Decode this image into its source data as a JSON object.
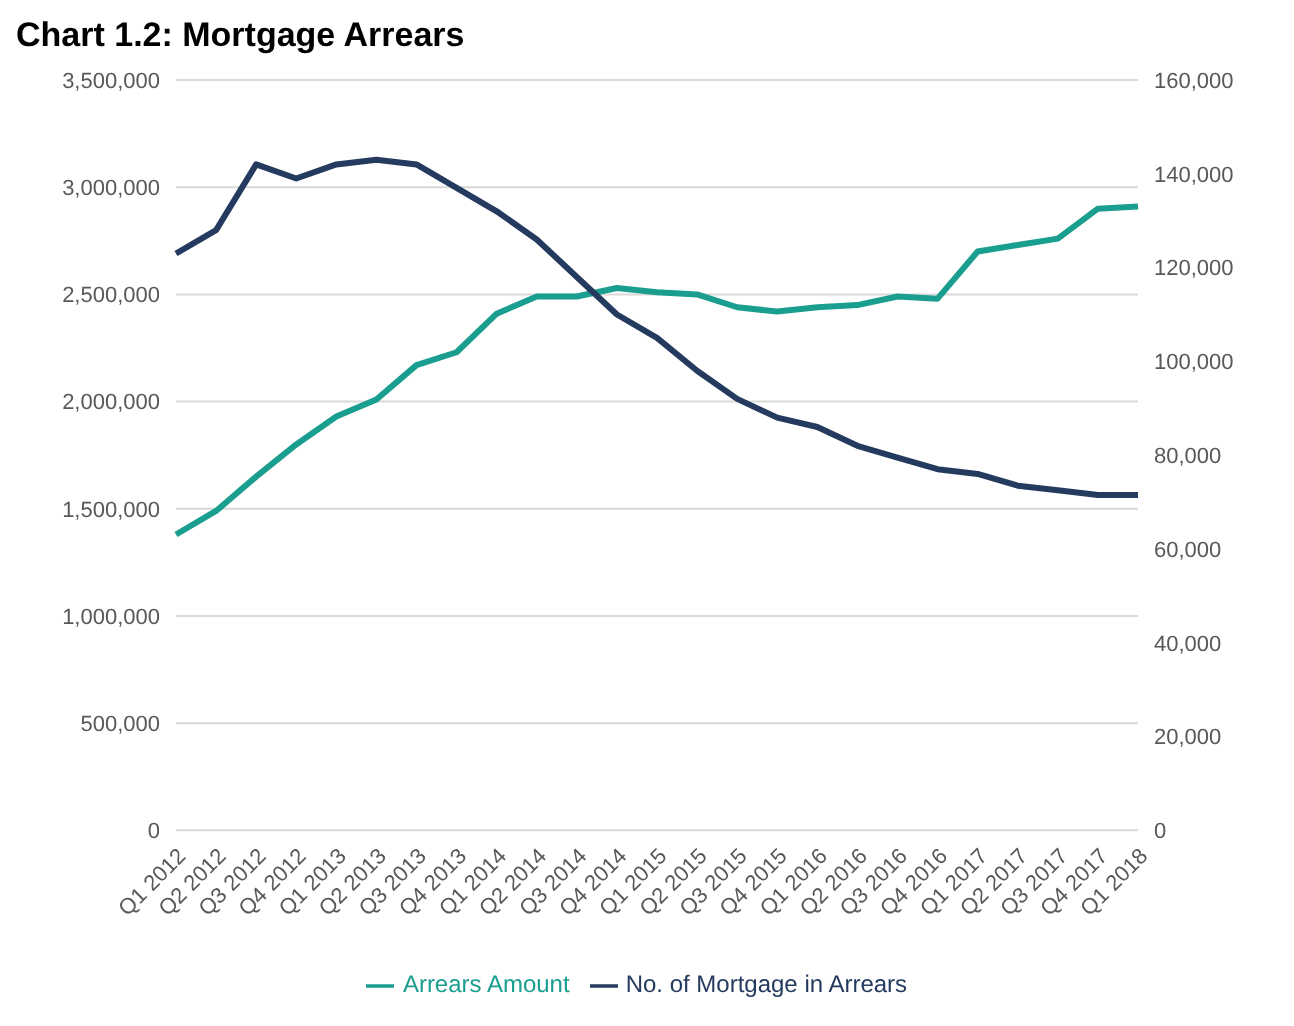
{
  "chart_data": {
    "type": "line",
    "title": "Chart 1.2: Mortgage Arrears",
    "categories": [
      "Q1 2012",
      "Q2 2012",
      "Q3 2012",
      "Q4 2012",
      "Q1 2013",
      "Q2 2013",
      "Q3 2013",
      "Q4 2013",
      "Q1 2014",
      "Q2 2014",
      "Q3 2014",
      "Q4 2014",
      "Q1 2015",
      "Q2 2015",
      "Q3 2015",
      "Q4 2015",
      "Q1 2016",
      "Q2 2016",
      "Q3 2016",
      "Q4 2016",
      "Q1 2017",
      "Q2 2017",
      "Q3 2017",
      "Q4 2017",
      "Q1 2018"
    ],
    "series": [
      {
        "name": "Arrears Amount",
        "color": "#1a9e8f",
        "values": [
          1380000,
          1490000,
          1650000,
          1800000,
          1930000,
          2010000,
          2170000,
          2230000,
          2410000,
          2490000,
          2490000,
          2530000,
          2510000,
          2500000,
          2440000,
          2420000,
          2440000,
          2450000,
          2490000,
          2480000,
          2700000,
          2730000,
          2760000,
          2900000,
          2910000
        ]
      },
      {
        "name": "No. of Mortgage in Arrears",
        "color": "#243a5e",
        "axis": "y2",
        "values": [
          123000,
          128000,
          142000,
          139000,
          142000,
          143000,
          142000,
          137000,
          132000,
          126000,
          118000,
          110000,
          105000,
          98000,
          92000,
          88000,
          86000,
          82000,
          79500,
          77000,
          76000,
          73500,
          72500,
          71500,
          71500
        ]
      }
    ],
    "ylim": [
      0,
      3500000
    ],
    "yticks": [
      0,
      {
        "value": 500000,
        "label": "500,000"
      },
      {
        "value": 1000000,
        "label": "1,000,000"
      },
      {
        "value": 1500000,
        "label": "1,500,000"
      },
      {
        "value": 2000000,
        "label": "2,000,000"
      },
      {
        "value": 2500000,
        "label": "2,500,000"
      },
      {
        "value": 3000000,
        "label": "3,000,000"
      },
      {
        "value": 3500000,
        "label": "3,500,000"
      }
    ],
    "y2lim": [
      0,
      160000
    ],
    "y2ticks": [
      0,
      {
        "value": 20000,
        "label": "20,000"
      },
      {
        "value": 40000,
        "label": "40,000"
      },
      {
        "value": 60000,
        "label": "60,000"
      },
      {
        "value": 80000,
        "label": "80,000"
      },
      {
        "value": 100000,
        "label": "100,000"
      },
      {
        "value": 120000,
        "label": "120,000"
      },
      {
        "value": 140000,
        "label": "140,000"
      },
      {
        "value": 160000,
        "label": "160,000"
      }
    ],
    "grid": "y",
    "legend": "bottom",
    "marker": "none",
    "line_style": "solid"
  }
}
